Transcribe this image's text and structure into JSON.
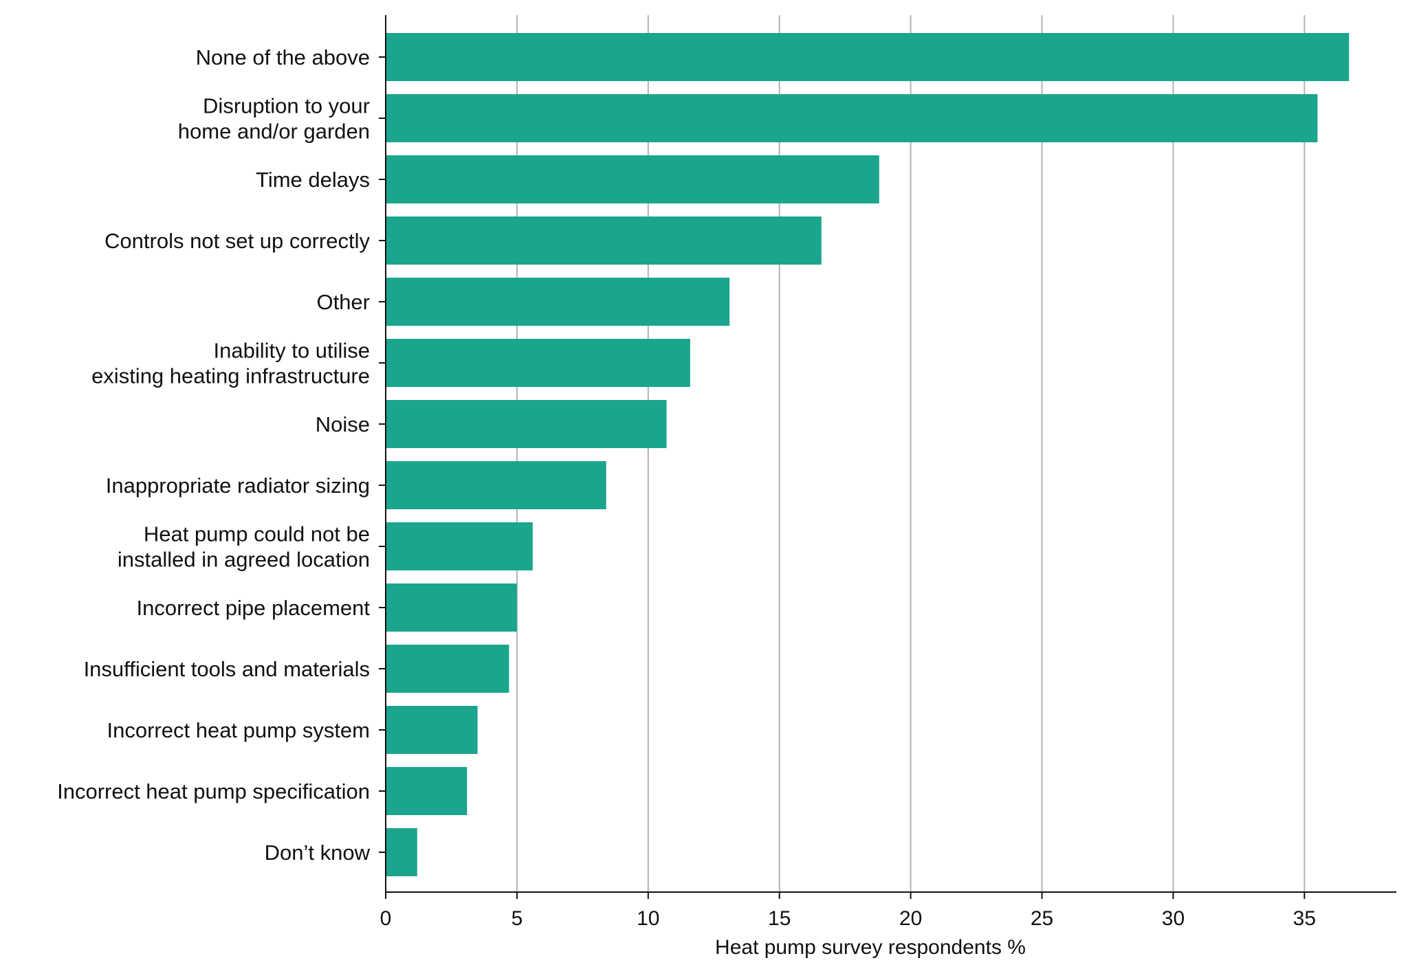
{
  "chart_data": {
    "type": "bar",
    "orientation": "horizontal",
    "categories": [
      [
        "None of the above"
      ],
      [
        "Disruption to your",
        "home and/or garden"
      ],
      [
        "Time delays"
      ],
      [
        "Controls not set up correctly"
      ],
      [
        "Other"
      ],
      [
        "Inability to utilise",
        "existing heating infrastructure"
      ],
      [
        "Noise"
      ],
      [
        "Inappropriate radiator sizing"
      ],
      [
        "Heat pump could not be",
        "installed in agreed location"
      ],
      [
        "Incorrect pipe placement"
      ],
      [
        "Insufficient tools and materials"
      ],
      [
        "Incorrect heat pump system"
      ],
      [
        "Incorrect heat pump specification"
      ],
      [
        "Don’t know"
      ]
    ],
    "values": [
      36.7,
      35.5,
      18.8,
      16.6,
      13.1,
      11.6,
      10.7,
      8.4,
      5.6,
      5.0,
      4.7,
      3.5,
      3.1,
      1.2
    ],
    "xlabel": "Heat pump survey respondents %",
    "ylabel": "",
    "xlim": [
      0,
      38.5
    ],
    "xticks": [
      0,
      5,
      10,
      15,
      20,
      25,
      30,
      35
    ],
    "grid": "vertical",
    "bar_color": "#1ba58c",
    "grid_color": "#b3b3b3",
    "axis_color": "#111111"
  }
}
